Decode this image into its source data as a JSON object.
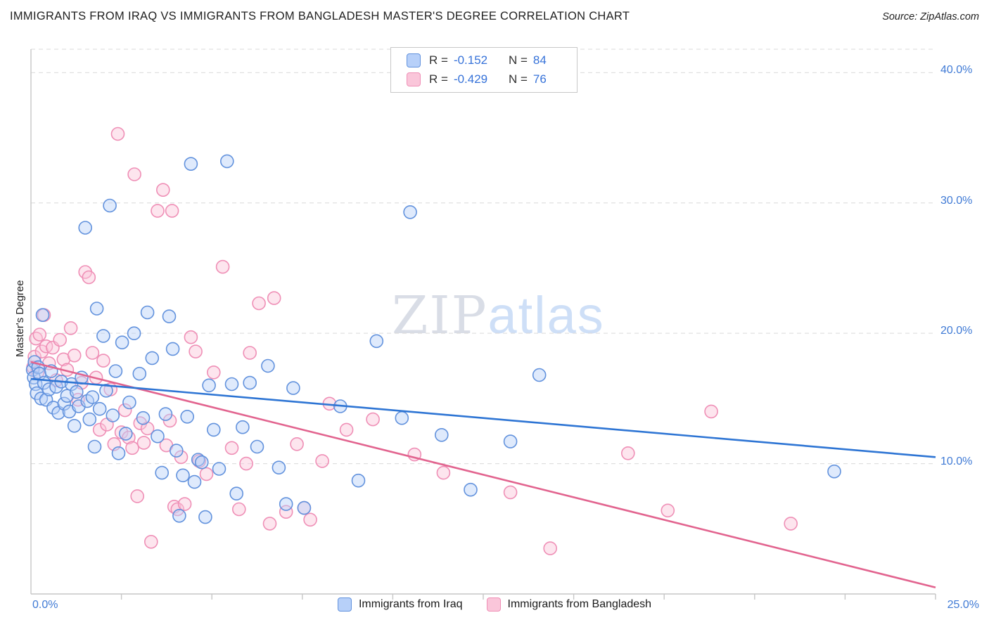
{
  "header": {
    "title": "IMMIGRANTS FROM IRAQ VS IMMIGRANTS FROM BANGLADESH MASTER'S DEGREE CORRELATION CHART",
    "source": "Source: ZipAtlas.com"
  },
  "watermark": {
    "zip": "ZIP",
    "atlas": "atlas"
  },
  "stats_legend": {
    "r_label": "R =",
    "n_label": "N =",
    "rows": [
      {
        "series": "iraq",
        "r": "-0.152",
        "n": "84"
      },
      {
        "series": "bangladesh",
        "r": "-0.429",
        "n": "76"
      }
    ]
  },
  "chart_data": {
    "type": "scatter",
    "title": "IMMIGRANTS FROM IRAQ VS IMMIGRANTS FROM BANGLADESH MASTER'S DEGREE CORRELATION CHART",
    "xlabel": "",
    "ylabel": "Master's Degree",
    "xlim": [
      0,
      25
    ],
    "ylim": [
      0,
      41.8
    ],
    "grid": "horizontal dashed",
    "legend_position": "bottom center",
    "x_ticks": [
      {
        "value": 0,
        "label": "0.0%"
      },
      {
        "value": 25,
        "label": "25.0%"
      }
    ],
    "y_ticks": [
      {
        "value": 40,
        "label": "40.0%"
      },
      {
        "value": 30,
        "label": "30.0%"
      },
      {
        "value": 20,
        "label": "20.0%"
      },
      {
        "value": 10,
        "label": "10.0%"
      }
    ],
    "series": [
      {
        "name": "Immigrants from Iraq",
        "fill": "#b7d0f9",
        "stroke": "#6292dd",
        "trend_color": "#2e75d4",
        "R": -0.152,
        "N": 84,
        "trend": {
          "x": [
            0,
            25
          ],
          "y": [
            16.5,
            10.5
          ]
        },
        "points": [
          [
            0.05,
            17.2
          ],
          [
            0.08,
            16.6
          ],
          [
            0.1,
            17.8
          ],
          [
            0.13,
            16.1
          ],
          [
            0.16,
            15.4
          ],
          [
            0.2,
            17.4
          ],
          [
            0.24,
            16.9
          ],
          [
            0.28,
            15.0
          ],
          [
            0.32,
            21.4
          ],
          [
            0.36,
            16.2
          ],
          [
            0.42,
            14.9
          ],
          [
            0.5,
            15.7
          ],
          [
            0.56,
            17.1
          ],
          [
            0.62,
            14.3
          ],
          [
            0.7,
            15.9
          ],
          [
            0.76,
            13.9
          ],
          [
            0.84,
            16.3
          ],
          [
            0.92,
            14.6
          ],
          [
            1.0,
            15.2
          ],
          [
            1.06,
            14.0
          ],
          [
            1.12,
            16.1
          ],
          [
            1.2,
            12.9
          ],
          [
            1.26,
            15.5
          ],
          [
            1.32,
            14.4
          ],
          [
            1.4,
            16.6
          ],
          [
            1.5,
            28.1
          ],
          [
            1.56,
            14.8
          ],
          [
            1.62,
            13.4
          ],
          [
            1.7,
            15.1
          ],
          [
            1.76,
            11.3
          ],
          [
            1.82,
            21.9
          ],
          [
            1.9,
            14.2
          ],
          [
            2.0,
            19.8
          ],
          [
            2.08,
            15.6
          ],
          [
            2.18,
            29.8
          ],
          [
            2.26,
            13.7
          ],
          [
            2.34,
            17.1
          ],
          [
            2.42,
            10.8
          ],
          [
            2.52,
            19.3
          ],
          [
            2.62,
            12.3
          ],
          [
            2.72,
            14.7
          ],
          [
            2.85,
            20.0
          ],
          [
            3.0,
            16.9
          ],
          [
            3.1,
            13.5
          ],
          [
            3.22,
            21.6
          ],
          [
            3.35,
            18.1
          ],
          [
            3.5,
            12.1
          ],
          [
            3.62,
            9.3
          ],
          [
            3.72,
            13.8
          ],
          [
            3.82,
            21.3
          ],
          [
            3.92,
            18.8
          ],
          [
            4.02,
            11.0
          ],
          [
            4.1,
            6.0
          ],
          [
            4.2,
            9.1
          ],
          [
            4.32,
            13.6
          ],
          [
            4.42,
            33.0
          ],
          [
            4.52,
            8.6
          ],
          [
            4.62,
            10.3
          ],
          [
            4.72,
            10.1
          ],
          [
            4.82,
            5.9
          ],
          [
            4.92,
            16.0
          ],
          [
            5.05,
            12.6
          ],
          [
            5.2,
            9.6
          ],
          [
            5.42,
            33.2
          ],
          [
            5.55,
            16.1
          ],
          [
            5.68,
            7.7
          ],
          [
            5.85,
            12.8
          ],
          [
            6.05,
            16.2
          ],
          [
            6.25,
            11.3
          ],
          [
            6.55,
            17.5
          ],
          [
            6.85,
            9.7
          ],
          [
            7.05,
            6.9
          ],
          [
            7.25,
            15.8
          ],
          [
            7.55,
            6.6
          ],
          [
            8.55,
            14.4
          ],
          [
            9.05,
            8.7
          ],
          [
            9.55,
            19.4
          ],
          [
            10.25,
            13.5
          ],
          [
            10.48,
            29.3
          ],
          [
            11.35,
            12.2
          ],
          [
            12.15,
            8.0
          ],
          [
            13.25,
            11.7
          ],
          [
            14.05,
            16.8
          ],
          [
            22.2,
            9.4
          ]
        ]
      },
      {
        "name": "Immigrants from Bangladesh",
        "fill": "#fac6da",
        "stroke": "#ef8fb6",
        "trend_color": "#e2648f",
        "R": -0.429,
        "N": 76,
        "trend": {
          "x": [
            0,
            25
          ],
          "y": [
            17.8,
            0.5
          ]
        },
        "points": [
          [
            0.06,
            17.4
          ],
          [
            0.1,
            18.2
          ],
          [
            0.14,
            19.6
          ],
          [
            0.18,
            17.0
          ],
          [
            0.24,
            19.9
          ],
          [
            0.3,
            18.6
          ],
          [
            0.36,
            21.4
          ],
          [
            0.42,
            19.0
          ],
          [
            0.5,
            17.7
          ],
          [
            0.6,
            18.9
          ],
          [
            0.7,
            16.4
          ],
          [
            0.8,
            19.5
          ],
          [
            0.9,
            18.0
          ],
          [
            1.0,
            17.2
          ],
          [
            1.1,
            20.4
          ],
          [
            1.2,
            18.3
          ],
          [
            1.3,
            14.9
          ],
          [
            1.4,
            16.2
          ],
          [
            1.5,
            24.7
          ],
          [
            1.6,
            24.3
          ],
          [
            1.7,
            18.5
          ],
          [
            1.8,
            16.6
          ],
          [
            1.9,
            12.6
          ],
          [
            2.0,
            17.9
          ],
          [
            2.1,
            13.0
          ],
          [
            2.2,
            15.7
          ],
          [
            2.3,
            11.5
          ],
          [
            2.4,
            35.3
          ],
          [
            2.5,
            12.4
          ],
          [
            2.6,
            14.1
          ],
          [
            2.7,
            12.0
          ],
          [
            2.8,
            11.2
          ],
          [
            2.86,
            32.2
          ],
          [
            2.94,
            7.5
          ],
          [
            3.02,
            13.1
          ],
          [
            3.12,
            11.6
          ],
          [
            3.22,
            12.7
          ],
          [
            3.32,
            4.0
          ],
          [
            3.5,
            29.4
          ],
          [
            3.65,
            31.0
          ],
          [
            3.74,
            11.4
          ],
          [
            3.84,
            13.3
          ],
          [
            3.9,
            29.4
          ],
          [
            3.96,
            6.7
          ],
          [
            4.05,
            6.5
          ],
          [
            4.15,
            10.5
          ],
          [
            4.25,
            6.9
          ],
          [
            4.42,
            19.7
          ],
          [
            4.55,
            18.6
          ],
          [
            4.65,
            10.2
          ],
          [
            4.85,
            9.2
          ],
          [
            5.05,
            17.0
          ],
          [
            5.3,
            25.1
          ],
          [
            5.55,
            11.2
          ],
          [
            5.75,
            6.5
          ],
          [
            5.95,
            10.0
          ],
          [
            6.05,
            18.5
          ],
          [
            6.3,
            22.3
          ],
          [
            6.6,
            5.4
          ],
          [
            6.72,
            22.7
          ],
          [
            7.05,
            6.3
          ],
          [
            7.35,
            11.5
          ],
          [
            7.55,
            6.6
          ],
          [
            7.72,
            5.7
          ],
          [
            8.05,
            10.2
          ],
          [
            8.25,
            14.6
          ],
          [
            8.72,
            12.6
          ],
          [
            9.45,
            13.4
          ],
          [
            10.6,
            10.7
          ],
          [
            11.4,
            9.3
          ],
          [
            13.25,
            7.8
          ],
          [
            14.35,
            3.5
          ],
          [
            16.5,
            10.8
          ],
          [
            17.6,
            6.4
          ],
          [
            18.8,
            14.0
          ],
          [
            21.0,
            5.4
          ]
        ]
      }
    ]
  }
}
